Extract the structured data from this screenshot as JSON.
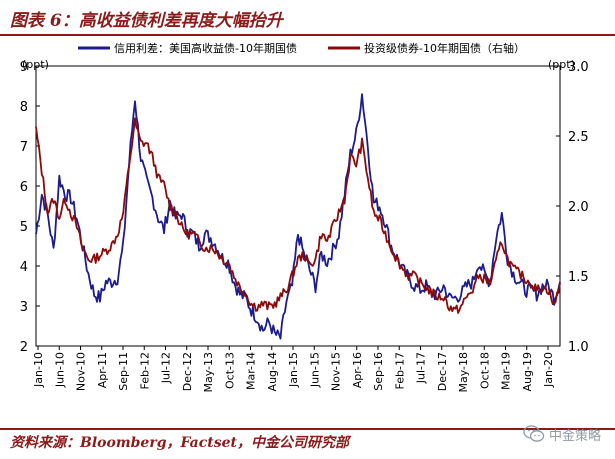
{
  "header": {
    "title": "图表 6：高收益债利差再度大幅抬升"
  },
  "footer": {
    "source": "资料来源：Bloomberg，Factset，中金公司研究部",
    "watermark": "中金策略",
    "watermark_icon": "wechat-icon"
  },
  "chart_data": {
    "type": "line",
    "title": "图表 6：高收益债利差再度大幅抬升",
    "ylabel_left": "(ppt)",
    "ylabel_right": "(ppt)",
    "y_left": {
      "min": 2,
      "max": 9,
      "ticks": [
        2,
        3,
        4,
        5,
        6,
        7,
        8,
        9
      ]
    },
    "y_right": {
      "min": 1.0,
      "max": 3.0,
      "ticks": [
        "1.0",
        "1.5",
        "2.0",
        "2.5",
        "3.0"
      ]
    },
    "x_ticks": [
      "Jan-10",
      "Jun-10",
      "Nov-10",
      "Apr-11",
      "Sep-11",
      "Feb-12",
      "Jul-12",
      "Dec-12",
      "May-13",
      "Oct-13",
      "Mar-14",
      "Aug-14",
      "Jan-15",
      "Jun-15",
      "Nov-15",
      "Apr-16",
      "Sep-16",
      "Feb-17",
      "Jul-17",
      "Dec-17",
      "May-18",
      "Oct-18",
      "Mar-19",
      "Aug-19",
      "Jan-20"
    ],
    "legend_position": "top",
    "colors": {
      "hy": "#1c1c8c",
      "ig": "#8b0a0a"
    },
    "series": [
      {
        "name": "信用利差：美国高收益债-10年期国债",
        "axis": "left",
        "values": [
          4.8,
          5.8,
          5.3,
          4.4,
          6.2,
          5.8,
          5.7,
          5.2,
          4.5,
          3.8,
          3.3,
          3.2,
          3.6,
          3.6,
          3.7,
          4.5,
          6.6,
          8.2,
          6.7,
          6.1,
          5.7,
          5.2,
          4.9,
          5.6,
          5.2,
          5.3,
          4.9,
          4.8,
          4.5,
          4.8,
          4.7,
          4.5,
          4.2,
          4.1,
          3.6,
          3.3,
          3.2,
          2.9,
          2.7,
          2.4,
          2.6,
          2.3,
          2.2,
          3.1,
          3.5,
          4.8,
          4.3,
          3.9,
          3.5,
          4.3,
          4.1,
          4.4,
          4.8,
          5.8,
          6.8,
          7.3,
          8.3,
          7.0,
          5.6,
          5.5,
          5.1,
          4.5,
          4.2,
          3.9,
          3.7,
          3.5,
          3.4,
          3.5,
          3.3,
          3.3,
          3.5,
          3.2,
          3.2,
          3.3,
          3.5,
          3.6,
          4.1,
          3.8,
          3.6,
          4.7,
          5.3,
          4.2,
          3.8,
          3.6,
          3.4,
          3.4,
          3.3,
          3.5,
          3.5,
          3.2,
          3.6
        ]
      },
      {
        "name": "投资级债券-10年期国债（右轴）",
        "axis": "right",
        "values": [
          2.55,
          2.25,
          1.95,
          2.05,
          1.92,
          2.05,
          1.95,
          1.85,
          1.7,
          1.62,
          1.62,
          1.65,
          1.68,
          1.72,
          1.8,
          1.95,
          2.3,
          2.6,
          2.45,
          2.45,
          2.35,
          2.2,
          2.15,
          2.0,
          1.95,
          1.85,
          1.8,
          1.8,
          1.75,
          1.7,
          1.7,
          1.68,
          1.62,
          1.6,
          1.5,
          1.42,
          1.38,
          1.3,
          1.28,
          1.3,
          1.28,
          1.3,
          1.35,
          1.4,
          1.5,
          1.62,
          1.65,
          1.58,
          1.62,
          1.8,
          1.75,
          1.85,
          1.95,
          2.05,
          2.35,
          2.3,
          2.45,
          2.2,
          1.95,
          1.9,
          1.8,
          1.7,
          1.62,
          1.55,
          1.5,
          1.5,
          1.45,
          1.42,
          1.38,
          1.35,
          1.35,
          1.28,
          1.25,
          1.28,
          1.35,
          1.4,
          1.5,
          1.48,
          1.45,
          1.6,
          1.75,
          1.62,
          1.55,
          1.52,
          1.48,
          1.45,
          1.4,
          1.42,
          1.4,
          1.28,
          1.45
        ]
      }
    ]
  }
}
